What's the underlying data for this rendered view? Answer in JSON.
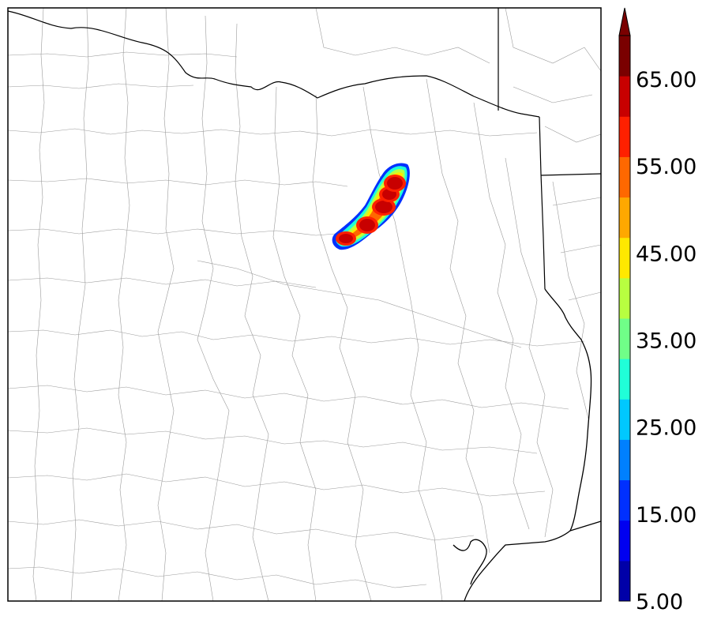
{
  "map": {
    "region": "Texas",
    "variable_colormap": "jet",
    "background": "#ffffff",
    "boundaries": {
      "county_color": "#9a9a9a",
      "state_color": "#000000",
      "coast_color": "#000000"
    },
    "echo_cores": [
      {
        "id": "core-1",
        "intensity_dbz": 68
      },
      {
        "id": "core-2",
        "intensity_dbz": 68
      },
      {
        "id": "core-3",
        "intensity_dbz": 67
      },
      {
        "id": "core-4",
        "intensity_dbz": 66
      },
      {
        "id": "core-5",
        "intensity_dbz": 66
      }
    ]
  },
  "colorbar": {
    "min": 5,
    "max": 70,
    "step": 5,
    "extend": "max",
    "tick_labels": [
      "5.00",
      "15.00",
      "25.00",
      "35.00",
      "45.00",
      "55.00",
      "65.00"
    ],
    "tick_values": [
      5,
      15,
      25,
      35,
      45,
      55,
      65
    ],
    "colors": [
      "#0000a8",
      "#0000f0",
      "#0030ff",
      "#0080ff",
      "#00c8ff",
      "#20ffd8",
      "#70ff88",
      "#b8ff40",
      "#ffe800",
      "#ffa800",
      "#ff6800",
      "#ff2000",
      "#c80000",
      "#7a0000"
    ]
  }
}
